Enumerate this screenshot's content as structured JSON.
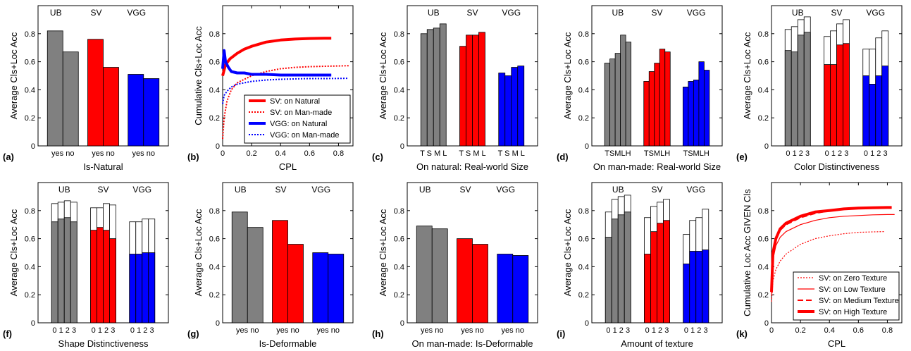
{
  "figure": {
    "panel_labels": [
      "(a)",
      "(b)",
      "(c)",
      "(d)",
      "(e)",
      "(f)",
      "(g)",
      "(h)",
      "(i)",
      "(k)"
    ]
  },
  "chart_data": [
    {
      "id": "a",
      "type": "bar",
      "xlabel": "Is-Natural",
      "ylabel": "Average Cls+Loc Acc",
      "ylim": [
        0,
        1
      ],
      "yticks": [
        "0",
        "0.2",
        "0.4",
        "0.6",
        "0.8"
      ],
      "groups": [
        {
          "name": "UB",
          "color": "#808080",
          "categories_label": "yes no",
          "values": [
            0.82,
            0.67
          ]
        },
        {
          "name": "SV",
          "color": "#ff0000",
          "categories_label": "yes no",
          "values": [
            0.76,
            0.56
          ]
        },
        {
          "name": "VGG",
          "color": "#0000ff",
          "categories_label": "yes no",
          "values": [
            0.51,
            0.48
          ]
        }
      ]
    },
    {
      "id": "b",
      "type": "line",
      "xlabel": "CPL",
      "ylabel": "Cumulative Cls+Loc Acc",
      "xlim": [
        0,
        0.9
      ],
      "ylim": [
        0,
        1
      ],
      "xticks": [
        "0",
        "0.2",
        "0.4",
        "0.6",
        "0.8"
      ],
      "yticks": [
        "0",
        "0.2",
        "0.4",
        "0.6",
        "0.8"
      ],
      "series": [
        {
          "name": "SV: on Natural",
          "color": "#ff0000",
          "style": "solid",
          "width": 4,
          "x": [
            0,
            0.02,
            0.05,
            0.1,
            0.15,
            0.2,
            0.3,
            0.4,
            0.5,
            0.6,
            0.7,
            0.75
          ],
          "y": [
            0.5,
            0.58,
            0.62,
            0.66,
            0.69,
            0.71,
            0.74,
            0.755,
            0.762,
            0.766,
            0.768,
            0.768
          ]
        },
        {
          "name": "SV: on Man-made",
          "color": "#ff0000",
          "style": "dotted",
          "width": 2,
          "x": [
            0,
            0.01,
            0.03,
            0.06,
            0.1,
            0.2,
            0.3,
            0.4,
            0.5,
            0.6,
            0.7,
            0.8,
            0.87
          ],
          "y": [
            0.05,
            0.2,
            0.32,
            0.4,
            0.45,
            0.5,
            0.53,
            0.55,
            0.56,
            0.565,
            0.568,
            0.57,
            0.572
          ]
        },
        {
          "name": "VGG: on Natural",
          "color": "#0000ff",
          "style": "solid",
          "width": 4,
          "x": [
            0,
            0.01,
            0.02,
            0.04,
            0.06,
            0.1,
            0.15,
            0.2,
            0.3,
            0.4,
            0.5,
            0.6,
            0.7,
            0.75
          ],
          "y": [
            0.55,
            0.68,
            0.6,
            0.56,
            0.53,
            0.52,
            0.52,
            0.51,
            0.51,
            0.505,
            0.505,
            0.505,
            0.505,
            0.505
          ]
        },
        {
          "name": "VGG: on Man-made",
          "color": "#0000ff",
          "style": "dotted",
          "width": 2,
          "x": [
            0,
            0.01,
            0.03,
            0.06,
            0.1,
            0.2,
            0.3,
            0.4,
            0.5,
            0.6,
            0.7,
            0.8,
            0.87
          ],
          "y": [
            0.3,
            0.36,
            0.39,
            0.42,
            0.44,
            0.46,
            0.47,
            0.475,
            0.478,
            0.48,
            0.48,
            0.481,
            0.482
          ]
        }
      ]
    },
    {
      "id": "c",
      "type": "bar",
      "xlabel": "On natural: Real-world Size",
      "ylabel": "Average Cls+Loc Acc",
      "ylim": [
        0,
        1
      ],
      "yticks": [
        "0",
        "0.2",
        "0.4",
        "0.6",
        "0.8"
      ],
      "groups": [
        {
          "name": "UB",
          "color": "#808080",
          "categories_label": "T S M L",
          "values": [
            0.8,
            0.83,
            0.84,
            0.87
          ]
        },
        {
          "name": "SV",
          "color": "#ff0000",
          "categories_label": "T S M L",
          "values": [
            0.71,
            0.79,
            0.79,
            0.81
          ]
        },
        {
          "name": "VGG",
          "color": "#0000ff",
          "categories_label": "T S M L",
          "values": [
            0.52,
            0.5,
            0.56,
            0.57
          ]
        }
      ]
    },
    {
      "id": "d",
      "type": "bar",
      "xlabel": "On man-made: Real-world Size",
      "ylabel": "Average Cls+Loc Acc",
      "ylim": [
        0,
        1
      ],
      "yticks": [
        "0",
        "0.2",
        "0.4",
        "0.6",
        "0.8"
      ],
      "groups": [
        {
          "name": "UB",
          "color": "#808080",
          "categories_label": "TSMLH",
          "values": [
            0.59,
            0.62,
            0.66,
            0.79,
            0.74
          ]
        },
        {
          "name": "SV",
          "color": "#ff0000",
          "categories_label": "TSMLH",
          "values": [
            0.46,
            0.53,
            0.59,
            0.69,
            0.67
          ]
        },
        {
          "name": "VGG",
          "color": "#0000ff",
          "categories_label": "TSMLH",
          "values": [
            0.42,
            0.46,
            0.47,
            0.6,
            0.54
          ]
        }
      ]
    },
    {
      "id": "e",
      "type": "bar",
      "xlabel": "Color Distinctiveness",
      "ylabel": "Average Cls+Loc Acc",
      "ylim": [
        0,
        1
      ],
      "yticks": [
        "0",
        "0.2",
        "0.4",
        "0.6",
        "0.8"
      ],
      "groups": [
        {
          "name": "UB",
          "color": "#808080",
          "categories_label": "0 1 2 3",
          "values": [
            0.68,
            0.67,
            0.79,
            0.81
          ],
          "outline": [
            0.83,
            0.85,
            0.9,
            0.92
          ]
        },
        {
          "name": "SV",
          "color": "#ff0000",
          "categories_label": "0 1 2 3",
          "values": [
            0.58,
            0.58,
            0.72,
            0.73
          ],
          "outline": [
            0.78,
            0.82,
            0.87,
            0.9
          ]
        },
        {
          "name": "VGG",
          "color": "#0000ff",
          "categories_label": "0 1 2 3",
          "values": [
            0.5,
            0.44,
            0.5,
            0.57
          ],
          "outline": [
            0.69,
            0.69,
            0.77,
            0.82
          ]
        }
      ]
    },
    {
      "id": "f",
      "type": "bar",
      "xlabel": "Shape Distinctiveness",
      "ylabel": "Average Cls+Loc Acc",
      "ylim": [
        0,
        1
      ],
      "yticks": [
        "0",
        "0.2",
        "0.4",
        "0.6",
        "0.8"
      ],
      "groups": [
        {
          "name": "UB",
          "color": "#808080",
          "categories_label": "0 1 2 3",
          "values": [
            0.72,
            0.74,
            0.75,
            0.72
          ],
          "outline": [
            0.85,
            0.86,
            0.87,
            0.86
          ]
        },
        {
          "name": "SV",
          "color": "#ff0000",
          "categories_label": "0 1 2 3",
          "values": [
            0.66,
            0.68,
            0.66,
            0.6
          ],
          "outline": [
            0.82,
            0.82,
            0.85,
            0.84
          ]
        },
        {
          "name": "VGG",
          "color": "#0000ff",
          "categories_label": "0 1 2 3",
          "values": [
            0.49,
            0.49,
            0.5,
            0.5
          ],
          "outline": [
            0.72,
            0.72,
            0.74,
            0.74
          ]
        }
      ]
    },
    {
      "id": "g",
      "type": "bar",
      "xlabel": "Is-Deformable",
      "ylabel": "Average Cls+Loc Acc",
      "ylim": [
        0,
        1
      ],
      "yticks": [
        "0",
        "0.2",
        "0.4",
        "0.6",
        "0.8"
      ],
      "groups": [
        {
          "name": "UB",
          "color": "#808080",
          "categories_label": "yes no",
          "values": [
            0.79,
            0.68
          ]
        },
        {
          "name": "SV",
          "color": "#ff0000",
          "categories_label": "yes no",
          "values": [
            0.73,
            0.56
          ]
        },
        {
          "name": "VGG",
          "color": "#0000ff",
          "categories_label": "yes no",
          "values": [
            0.5,
            0.49
          ]
        }
      ]
    },
    {
      "id": "h",
      "type": "bar",
      "xlabel": "On man-made: Is-Deformable",
      "ylabel": "Average Cls+Loc Acc",
      "ylim": [
        0,
        1
      ],
      "yticks": [
        "0",
        "0.2",
        "0.4",
        "0.6",
        "0.8"
      ],
      "groups": [
        {
          "name": "UB",
          "color": "#808080",
          "categories_label": "yes no",
          "values": [
            0.69,
            0.67
          ]
        },
        {
          "name": "SV",
          "color": "#ff0000",
          "categories_label": "yes no",
          "values": [
            0.6,
            0.56
          ]
        },
        {
          "name": "VGG",
          "color": "#0000ff",
          "categories_label": "yes no",
          "values": [
            0.49,
            0.48
          ]
        }
      ]
    },
    {
      "id": "i",
      "type": "bar",
      "xlabel": "Amount of texture",
      "ylabel": "Average Cls+Loc Acc",
      "ylim": [
        0,
        1
      ],
      "yticks": [
        "0",
        "0.2",
        "0.4",
        "0.6",
        "0.8"
      ],
      "groups": [
        {
          "name": "UB",
          "color": "#808080",
          "categories_label": "0 1 2 3",
          "values": [
            0.61,
            0.74,
            0.77,
            0.79
          ],
          "outline": [
            0.79,
            0.88,
            0.9,
            0.91
          ]
        },
        {
          "name": "SV",
          "color": "#ff0000",
          "categories_label": "0 1 2 3",
          "values": [
            0.49,
            0.65,
            0.71,
            0.73
          ],
          "outline": [
            0.75,
            0.83,
            0.86,
            0.88
          ]
        },
        {
          "name": "VGG",
          "color": "#0000ff",
          "categories_label": "0 1 2 3",
          "values": [
            0.42,
            0.51,
            0.51,
            0.52
          ],
          "outline": [
            0.63,
            0.73,
            0.75,
            0.81
          ]
        }
      ]
    },
    {
      "id": "k",
      "type": "line",
      "xlabel": "CPL",
      "ylabel": "Cumulative Loc Acc GIVEN Cls",
      "xlim": [
        0,
        0.9
      ],
      "ylim": [
        0,
        1
      ],
      "xticks": [
        "0",
        "0.2",
        "0.4",
        "0.6",
        "0.8"
      ],
      "yticks": [
        "0",
        "0.2",
        "0.4",
        "0.6",
        "0.8"
      ],
      "series": [
        {
          "name": "SV: on Zero Texture",
          "color": "#ff0000",
          "style": "dotted",
          "width": 1.2,
          "x": [
            0,
            0.01,
            0.03,
            0.06,
            0.1,
            0.2,
            0.3,
            0.4,
            0.5,
            0.6,
            0.7,
            0.78
          ],
          "y": [
            0.15,
            0.3,
            0.38,
            0.44,
            0.49,
            0.56,
            0.6,
            0.62,
            0.635,
            0.645,
            0.648,
            0.65
          ]
        },
        {
          "name": "SV: on Low Texture",
          "color": "#ff0000",
          "style": "solid",
          "width": 1.2,
          "x": [
            0,
            0.01,
            0.03,
            0.06,
            0.1,
            0.2,
            0.3,
            0.4,
            0.5,
            0.6,
            0.7,
            0.8,
            0.85
          ],
          "y": [
            0.2,
            0.45,
            0.55,
            0.61,
            0.65,
            0.7,
            0.73,
            0.75,
            0.76,
            0.765,
            0.77,
            0.772,
            0.772
          ]
        },
        {
          "name": "SV: on Medium Texture",
          "color": "#ff0000",
          "style": "dashed",
          "width": 2,
          "x": [
            0,
            0.01,
            0.03,
            0.06,
            0.1,
            0.2,
            0.3,
            0.4,
            0.5,
            0.6,
            0.7,
            0.8,
            0.83
          ],
          "y": [
            0.25,
            0.5,
            0.6,
            0.66,
            0.7,
            0.75,
            0.78,
            0.8,
            0.81,
            0.815,
            0.818,
            0.82,
            0.82
          ]
        },
        {
          "name": "SV: on High Texture",
          "color": "#ff0000",
          "style": "solid",
          "width": 4,
          "x": [
            0,
            0.01,
            0.03,
            0.06,
            0.1,
            0.2,
            0.3,
            0.4,
            0.5,
            0.6,
            0.7,
            0.8,
            0.83
          ],
          "y": [
            0.22,
            0.5,
            0.6,
            0.67,
            0.71,
            0.76,
            0.79,
            0.8,
            0.812,
            0.818,
            0.82,
            0.822,
            0.822
          ]
        }
      ]
    }
  ]
}
